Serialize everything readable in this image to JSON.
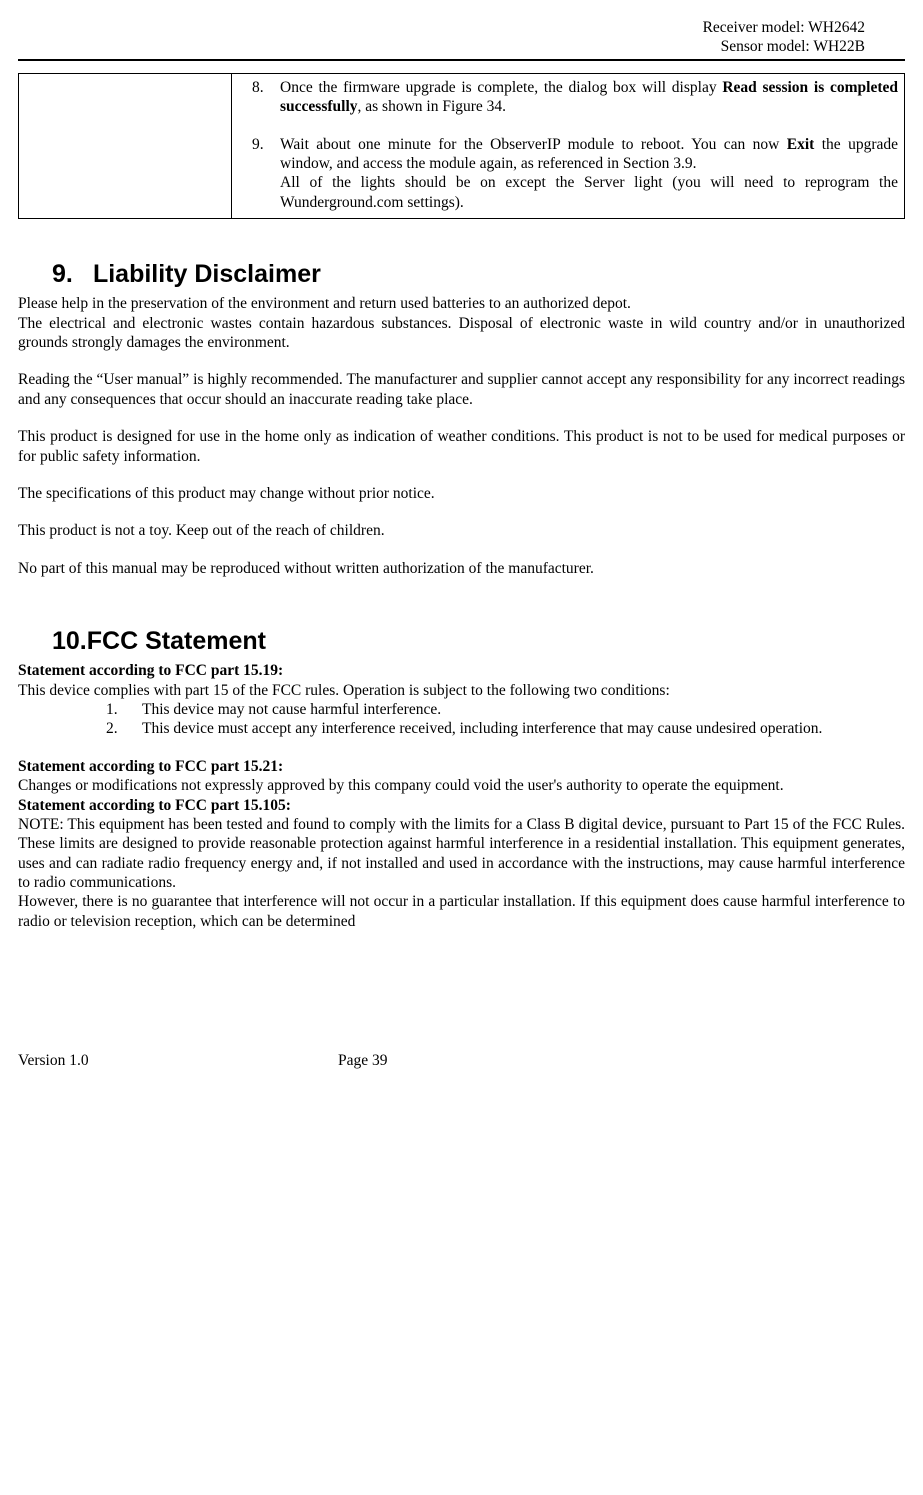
{
  "header": {
    "line1": "Receiver model: WH2642",
    "line2": "Sensor model: WH22B"
  },
  "tableCell": {
    "items": [
      {
        "num": "8.",
        "text_before": "Once the firmware upgrade is complete, the dialog box will display ",
        "bold": "Read session is completed successfully",
        "text_after": ", as shown in Figure 34."
      },
      {
        "num": "9.",
        "text_before": "Wait about one minute for the ObserverIP module to reboot. You can now ",
        "bold": "Exit",
        "text_after": " the upgrade window, and access the module again, as referenced in Section 3.9."
      }
    ],
    "extra": "All of the lights should be on except the Server light (you will need to reprogram the Wunderground.com settings)."
  },
  "section9": {
    "num": "9.",
    "title": "Liability Disclaimer",
    "p1": "Please help in the preservation of the environment and return used batteries to an authorized depot.",
    "p2": "The electrical and electronic wastes contain hazardous substances. Disposal of electronic waste in wild country and/or in unauthorized grounds strongly damages the environment.",
    "p3": "Reading the “User manual” is highly recommended. The manufacturer and supplier cannot accept any responsibility for any incorrect readings and any consequences that occur should an inaccurate reading take place.",
    "p4": "This product is designed for use in the home only as indication of weather conditions. This product is not to be used for medical purposes or for public safety information.",
    "p5": "The specifications of this product may change without prior notice.",
    "p6": "This product is not a toy. Keep out of the reach of children.",
    "p7": "No part of this manual may be reproduced without written authorization of the manufacturer."
  },
  "section10": {
    "num": "10.",
    "title": "FCC Statement",
    "h1": "Statement according to FCC part 15.19:",
    "p1": "This device complies with part 15 of the FCC rules. Operation is subject to the following two conditions:",
    "list": [
      {
        "n": "1.",
        "t": "This device may not cause harmful interference."
      },
      {
        "n": "2.",
        "t": "This device must accept any interference received, including interference that may cause undesired operation."
      }
    ],
    "h2": "Statement according to FCC part 15.21:",
    "p2": "Changes or modifications not expressly approved by this company could void the user's authority to operate the equipment.",
    "h3": "Statement according to FCC part 15.105:",
    "p3": "NOTE: This equipment has been tested and found to comply with the limits for a Class B digital device, pursuant to Part 15 of the FCC Rules. These limits are designed to provide reasonable protection against harmful interference in a residential installation. This equipment generates, uses and can radiate radio frequency energy and, if not installed and used in accordance with the instructions, may cause harmful interference to radio communications.",
    "p4": "However, there is no guarantee that interference will not occur in a particular installation. If this equipment does cause harmful interference to radio or television reception, which can be determined"
  },
  "footer": {
    "version": "Version 1.0",
    "page": "Page 39"
  }
}
